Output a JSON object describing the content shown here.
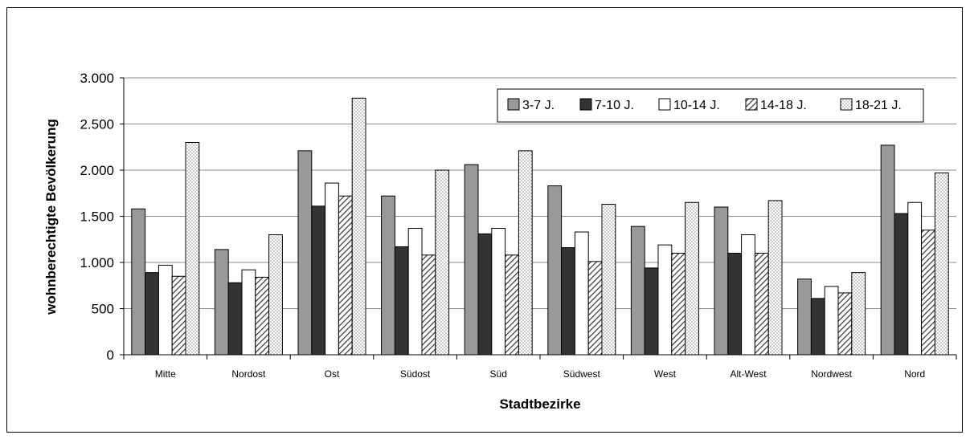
{
  "chart_data": {
    "type": "bar",
    "title": "",
    "xlabel": "Stadtbezirke",
    "ylabel": "wohnberechtigte Bevölkerung",
    "ylim": [
      0,
      3000
    ],
    "yticks": [
      0,
      500,
      1000,
      1500,
      2000,
      2500,
      3000
    ],
    "ytick_labels": [
      "0",
      "500",
      "1.000",
      "1.500",
      "2.000",
      "2.500",
      "3.000"
    ],
    "grid": true,
    "legend_position": "top-right",
    "categories": [
      "Mitte",
      "Nordost",
      "Ost",
      "Südost",
      "Süd",
      "Südwest",
      "West",
      "Alt-West",
      "Nordwest",
      "Nord"
    ],
    "series": [
      {
        "name": "3-7 J.",
        "color": "#999999",
        "pattern": "solid",
        "values": [
          1580,
          1140,
          2210,
          1720,
          2060,
          1830,
          1390,
          1600,
          820,
          2270
        ]
      },
      {
        "name": "7-10 J.",
        "color": "#333333",
        "pattern": "solid",
        "values": [
          890,
          780,
          1610,
          1170,
          1310,
          1160,
          940,
          1100,
          610,
          1530
        ]
      },
      {
        "name": "10-14 J.",
        "color": "#ffffff",
        "pattern": "solid",
        "values": [
          970,
          920,
          1860,
          1370,
          1370,
          1330,
          1190,
          1300,
          740,
          1650
        ]
      },
      {
        "name": "14-18 J.",
        "color": "#ffffff",
        "pattern": "hatch",
        "values": [
          850,
          840,
          1720,
          1080,
          1080,
          1010,
          1100,
          1100,
          670,
          1350
        ]
      },
      {
        "name": "18-21 J.",
        "color": "#ffffff",
        "pattern": "dots",
        "values": [
          2300,
          1300,
          2780,
          2000,
          2210,
          1630,
          1650,
          1670,
          890,
          1970
        ]
      }
    ]
  }
}
